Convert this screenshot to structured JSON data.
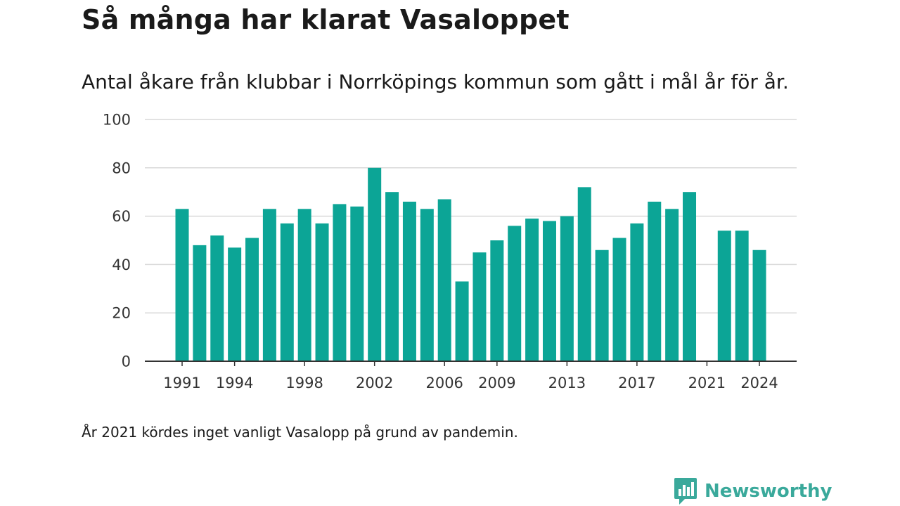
{
  "header": {
    "title": "Så många har klarat Vasaloppet",
    "subtitle": "Antal åkare från klubbar i Norrköpings kommun som gått i mål år för år."
  },
  "footer": {
    "note": "År 2021 kördes inget vanligt Vasalopp på grund av pandemin.",
    "brand": "Newsworthy",
    "brand_icon": "bar-chart-speech-bubble-icon"
  },
  "colors": {
    "bar": "#0ca596",
    "grid": "#d9d9d9",
    "axis": "#333333",
    "brand": "#3aa99b"
  },
  "chart_data": {
    "type": "bar",
    "title": "Så många har klarat Vasaloppet",
    "subtitle": "Antal åkare från klubbar i Norrköpings kommun som gått i mål år för år.",
    "categories": [
      1991,
      1992,
      1993,
      1994,
      1995,
      1996,
      1997,
      1998,
      1999,
      2000,
      2001,
      2002,
      2003,
      2004,
      2005,
      2006,
      2007,
      2008,
      2009,
      2010,
      2011,
      2012,
      2013,
      2014,
      2015,
      2016,
      2017,
      2018,
      2019,
      2020,
      2021,
      2022,
      2023,
      2024
    ],
    "values": [
      63,
      48,
      52,
      47,
      51,
      63,
      57,
      63,
      57,
      65,
      64,
      80,
      70,
      66,
      63,
      67,
      33,
      45,
      50,
      56,
      59,
      58,
      60,
      72,
      46,
      51,
      57,
      66,
      63,
      70,
      null,
      54,
      54,
      46
    ],
    "x_tick_labels": [
      "1991",
      "1994",
      "1998",
      "2002",
      "2006",
      "2009",
      "2013",
      "2017",
      "2021",
      "2024"
    ],
    "y_ticks": [
      0,
      20,
      40,
      60,
      80,
      100
    ],
    "ylim": [
      0,
      100
    ],
    "xlabel": "",
    "ylabel": "",
    "grid": true
  }
}
